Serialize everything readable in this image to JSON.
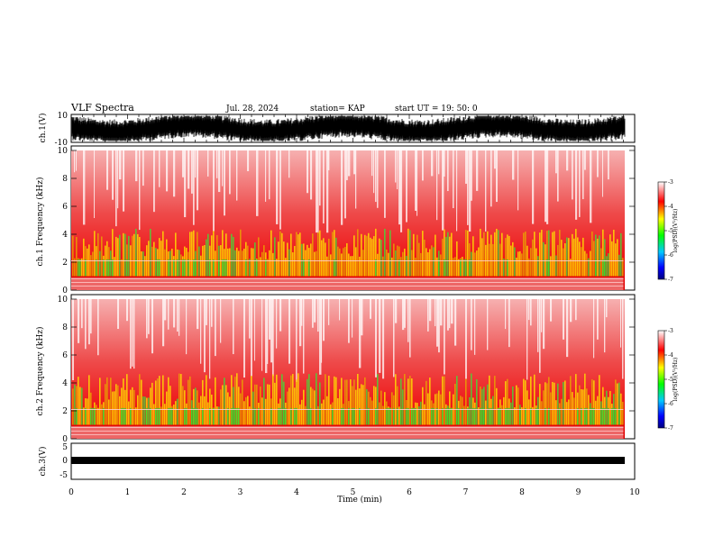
{
  "header": {
    "title": "VLF Spectra",
    "date": "Jul. 28, 2024",
    "station": "station= KAP",
    "start_ut": "start UT =  19: 50: 0"
  },
  "chart_data": [
    {
      "type": "line",
      "panel": "ch1-waveform",
      "ylabel": "ch.1(V)",
      "ylim": [
        -10,
        10
      ],
      "y_tick_labels": [
        "10",
        "-10"
      ],
      "xlim": [
        0,
        10
      ],
      "trace_range_approx": [
        -9,
        9
      ]
    },
    {
      "type": "heatmap",
      "panel": "ch1-spectrogram",
      "ylabel": "ch.1 Frequency (kHz)",
      "ylim": [
        0,
        10
      ],
      "y_tick_labels": [
        "0",
        "2",
        "4",
        "6",
        "8",
        "10"
      ],
      "xlim": [
        0,
        9.8
      ],
      "colorbar": {
        "label": "log(PSD)(V²/Hz)",
        "range": [
          -7,
          -3
        ],
        "tick_labels": [
          "-3",
          "-4",
          "-5",
          "-6",
          "-7"
        ]
      }
    },
    {
      "type": "heatmap",
      "panel": "ch2-spectrogram",
      "ylabel": "ch.2 Frequency (kHz)",
      "ylim": [
        0,
        10
      ],
      "y_tick_labels": [
        "0",
        "2",
        "4",
        "6",
        "8",
        "10"
      ],
      "xlim": [
        0,
        9.8
      ],
      "colorbar": {
        "label": "log(PSD)(V²/Hz)",
        "range": [
          -7,
          -3
        ],
        "tick_labels": [
          "-3",
          "-4",
          "-5",
          "-6",
          "-7"
        ]
      }
    },
    {
      "type": "line",
      "panel": "ch3-waveform",
      "ylabel": "ch.3(V)",
      "ylim": [
        -5,
        5
      ],
      "y_tick_labels": [
        "5",
        "0",
        "-5"
      ],
      "xlim": [
        0,
        10
      ],
      "trace_range_approx": [
        -0.8,
        0.8
      ],
      "xlabel": "Time (min)",
      "x_tick_labels": [
        "0",
        "1",
        "2",
        "3",
        "4",
        "5",
        "6",
        "7",
        "8",
        "9",
        "10"
      ]
    }
  ]
}
